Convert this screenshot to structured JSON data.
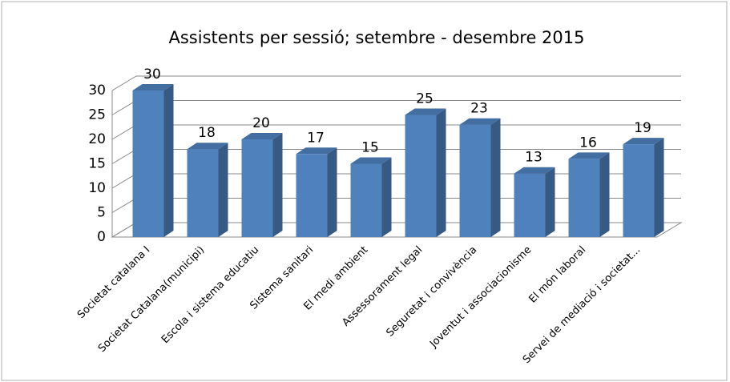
{
  "chart_data": {
    "type": "bar3d",
    "title": "Assistents per sessió; setembre - desembre 2015",
    "categories": [
      "Societat catalana I",
      "Societat Catalana(municipi)",
      "Escola i sistema educatiu",
      "Sistema sanitari",
      "El medi ambient",
      "Assessorament legal",
      "Seguretat i convivència",
      "Joventut i associacionisme",
      "El món laboral",
      "Servei de mediació i societat..."
    ],
    "values": [
      30,
      18,
      20,
      17,
      15,
      25,
      23,
      13,
      16,
      19
    ],
    "color": "#4f81bd",
    "ylim": [
      0,
      30
    ],
    "yticks": [
      0,
      5,
      10,
      15,
      20,
      25,
      30
    ],
    "grid": true
  }
}
